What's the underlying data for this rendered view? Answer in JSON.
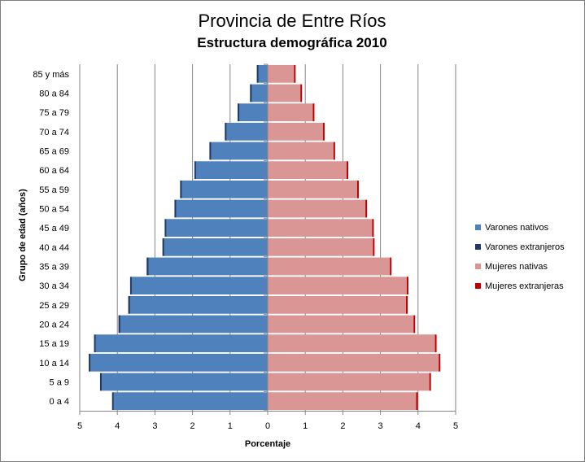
{
  "chart_data": {
    "type": "bar",
    "orientation": "horizontal",
    "layout": "population-pyramid",
    "title": "Provincia de Entre Ríos",
    "subtitle": "Estructura demográfica 2010",
    "xlabel": "Porcentaje",
    "ylabel": "Grupo de edad (años)",
    "xlim": [
      -5,
      5
    ],
    "x_ticks": [
      "5",
      "4",
      "3",
      "2",
      "1",
      "0",
      "1",
      "2",
      "3",
      "4",
      "5"
    ],
    "grid": "vertical",
    "legend_position": "right",
    "categories": [
      "0 a 4",
      "5 a 9",
      "10 a 14",
      "15 a 19",
      "20 a 24",
      "25 a 29",
      "30 a 34",
      "35 a 39",
      "40 a 44",
      "45 a 49",
      "50 a 54",
      "55 a 59",
      "60 a 64",
      "65 a 69",
      "70 a 74",
      "75 a 79",
      "80 a 84",
      "85 y más"
    ],
    "series": [
      {
        "name": "Varones nativos",
        "side": "left",
        "color": "#4f81bd",
        "values": [
          4.1,
          4.42,
          4.72,
          4.58,
          3.92,
          3.66,
          3.62,
          3.17,
          2.76,
          2.7,
          2.45,
          2.3,
          1.91,
          1.52,
          1.11,
          0.77,
          0.44,
          0.26
        ]
      },
      {
        "name": "Varones extranjeros",
        "side": "left",
        "color": "#1f3864",
        "values": [
          0.04,
          0.04,
          0.04,
          0.04,
          0.05,
          0.05,
          0.04,
          0.05,
          0.04,
          0.04,
          0.03,
          0.03,
          0.04,
          0.03,
          0.03,
          0.03,
          0.03,
          0.03
        ]
      },
      {
        "name": "Mujeres nativas",
        "side": "right",
        "color": "#d99694",
        "values": [
          3.95,
          4.3,
          4.55,
          4.45,
          3.88,
          3.68,
          3.7,
          3.25,
          2.8,
          2.78,
          2.6,
          2.38,
          2.1,
          1.75,
          1.47,
          1.2,
          0.87,
          0.7
        ]
      },
      {
        "name": "Mujeres extranjeras",
        "side": "right",
        "color": "#c00000",
        "values": [
          0.04,
          0.04,
          0.04,
          0.04,
          0.04,
          0.04,
          0.04,
          0.04,
          0.04,
          0.04,
          0.04,
          0.04,
          0.04,
          0.04,
          0.04,
          0.04,
          0.04,
          0.04
        ]
      }
    ]
  }
}
